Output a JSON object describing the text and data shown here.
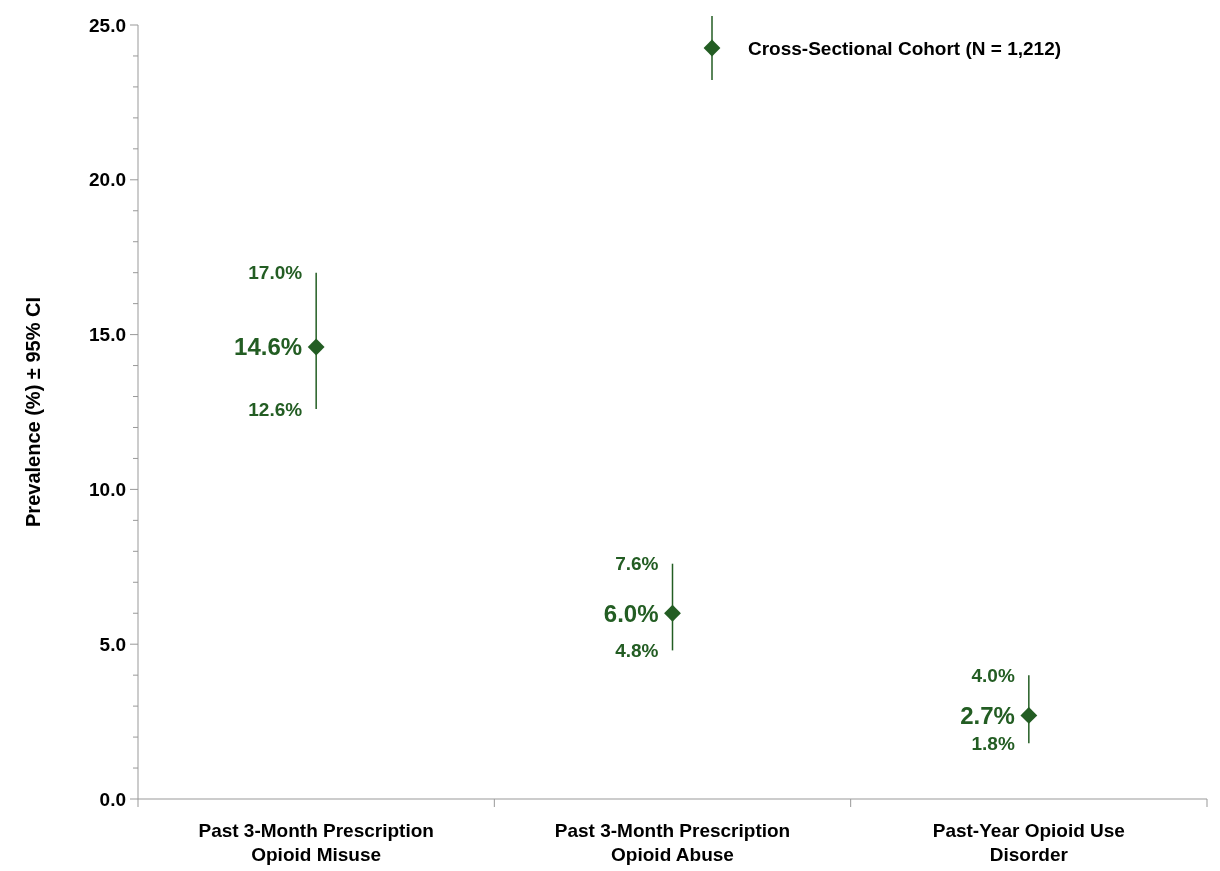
{
  "chart_data": {
    "type": "scatter",
    "ylabel": "Prevalence (%) ± 95% CI",
    "categories": [
      "Past 3-Month Prescription Opioid Misuse",
      "Past 3-Month Prescription Opioid Abuse",
      "Past-Year Opioid Use Disorder"
    ],
    "series": [
      {
        "name": "Cross-Sectional Cohort (N = 1,212)",
        "color": "#235d23",
        "values": [
          14.6,
          6.0,
          2.7
        ],
        "errors": [
          [
            12.6,
            17.0
          ],
          [
            4.8,
            7.6
          ],
          [
            1.8,
            4.0
          ]
        ],
        "value_labels": [
          "14.6%",
          "6.0%",
          "2.7%"
        ]
      }
    ],
    "annotations": [
      {
        "text": "17.0%",
        "x": "Past 3-Month Prescription Opioid Misuse",
        "y": 17.0
      },
      {
        "text": "12.6%",
        "x": "Past 3-Month Prescription Opioid Misuse",
        "y": 12.6
      },
      {
        "text": "7.6%",
        "x": "Past 3-Month Prescription Opioid Abuse",
        "y": 7.6
      },
      {
        "text": "4.8%",
        "x": "Past 3-Month Prescription Opioid Abuse",
        "y": 4.8
      },
      {
        "text": "4.0%",
        "x": "Past-Year Opioid Use Disorder",
        "y": 4.0
      },
      {
        "text": "1.8%",
        "x": "Past-Year Opioid Use Disorder",
        "y": 1.8
      }
    ],
    "ylim": [
      0,
      25
    ],
    "yticks": [
      {
        "value": 0,
        "label": "0.0"
      },
      {
        "value": 1,
        "label": null
      },
      {
        "value": 2,
        "label": null
      },
      {
        "value": 3,
        "label": null
      },
      {
        "value": 4,
        "label": null
      },
      {
        "value": 5,
        "label": "5.0"
      },
      {
        "value": 6,
        "label": null
      },
      {
        "value": 7,
        "label": null
      },
      {
        "value": 8,
        "label": null
      },
      {
        "value": 9,
        "label": null
      },
      {
        "value": 10,
        "label": "10.0"
      },
      {
        "value": 11,
        "label": null
      },
      {
        "value": 12,
        "label": null
      },
      {
        "value": 13,
        "label": null
      },
      {
        "value": 14,
        "label": null
      },
      {
        "value": 15,
        "label": "15.0"
      },
      {
        "value": 16,
        "label": null
      },
      {
        "value": 17,
        "label": null
      },
      {
        "value": 18,
        "label": null
      },
      {
        "value": 19,
        "label": null
      },
      {
        "value": 20,
        "label": "20.0"
      },
      {
        "value": 21,
        "label": null
      },
      {
        "value": 22,
        "label": null
      },
      {
        "value": 23,
        "label": null
      },
      {
        "value": 24,
        "label": null
      },
      {
        "value": 25,
        "label": "25.0"
      }
    ],
    "marker": "diamond",
    "legend": "top right",
    "grid": false
  }
}
